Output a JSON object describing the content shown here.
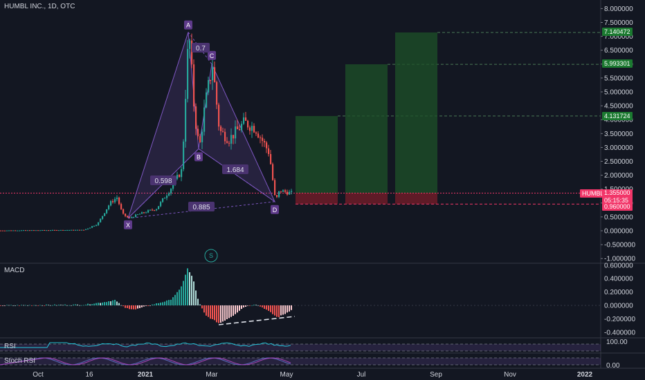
{
  "header": {
    "symbol": "HUMBL INC., 1D, OTC"
  },
  "colors": {
    "background": "#131722",
    "up": "#26a69a",
    "down": "#ef5350",
    "pattern": "#7e57c2",
    "target": "#1e5128",
    "stop": "#7a1e2a",
    "price_line": "#f23669"
  },
  "chart_data": {
    "type": "candlestick",
    "price_axis": {
      "ticks": [
        "8.000000",
        "7.500000",
        "7.000000",
        "6.500000",
        "6.000000",
        "5.500000",
        "5.000000",
        "4.500000",
        "4.000000",
        "3.500000",
        "3.000000",
        "2.500000",
        "2.000000",
        "1.500000",
        "1.000000",
        "0.500000",
        "0.000000",
        "-0.500000",
        "-1.000000"
      ],
      "range": [
        -1.0,
        8.0
      ]
    },
    "time_axis": {
      "ticks": [
        "Oct",
        "16",
        "2021",
        "Mar",
        "May",
        "Jul",
        "Sep",
        "Nov",
        "2022"
      ]
    },
    "price_labels": {
      "symbol": "HUMBL",
      "current": "1.355000",
      "countdown": "05:15:35",
      "target1": "4.131724",
      "target2": "5.993301",
      "target3": "7.140472",
      "stop": "0.960000"
    },
    "pattern": {
      "points": [
        {
          "label": "X",
          "price": 0.45
        },
        {
          "label": "A",
          "price": 7.15
        },
        {
          "label": "B",
          "price": 2.95
        },
        {
          "label": "C",
          "price": 6.0
        },
        {
          "label": "D",
          "price": 1.05
        }
      ],
      "ratios": [
        "0.7",
        "0.598",
        "1.684",
        "0.885"
      ]
    },
    "marker": "S",
    "macd": {
      "label": "MACD",
      "ticks": [
        "0.600000",
        "0.400000",
        "0.200000",
        "0.000000",
        "-0.200000",
        "-0.400000"
      ]
    },
    "rsi": {
      "label": "RSI",
      "ticks": [
        "100.00"
      ]
    },
    "stoch_rsi": {
      "label": "Stoch RSI",
      "ticks": [
        "0.00"
      ]
    }
  }
}
